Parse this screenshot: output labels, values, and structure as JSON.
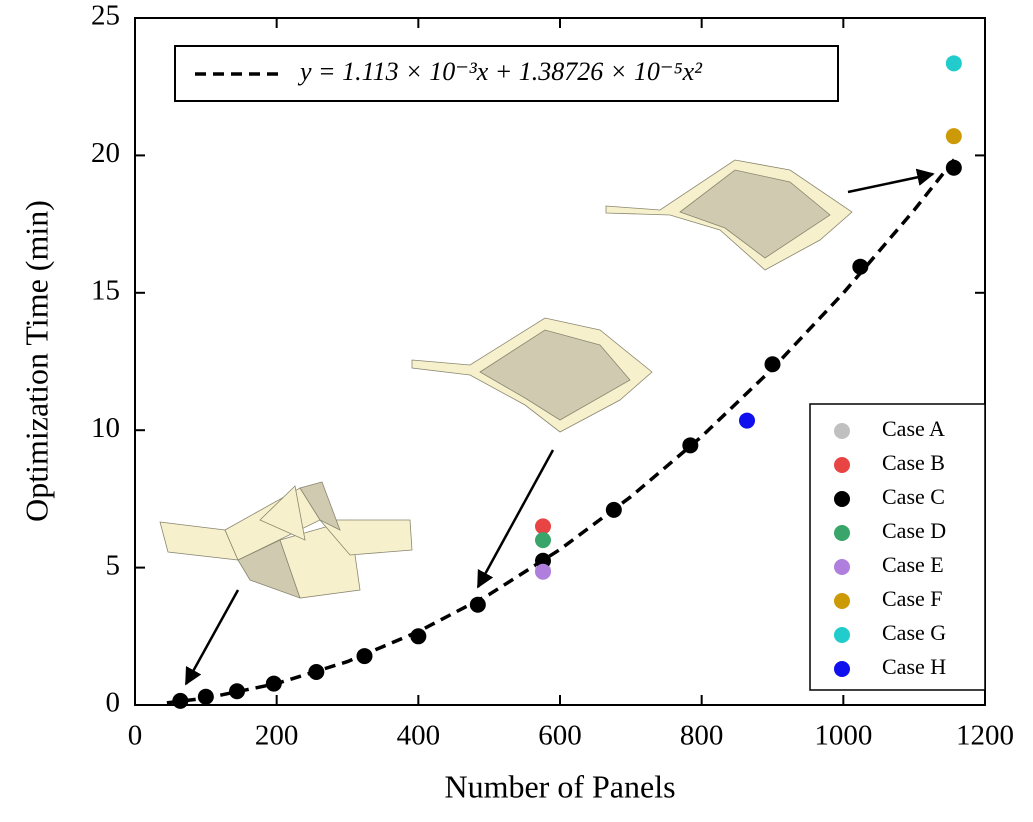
{
  "chart_data": {
    "type": "scatter",
    "x_label": "Number of Panels",
    "y_label": "Optimization Time (min)",
    "xlim": [
      0,
      1200
    ],
    "xticks": [
      0,
      200,
      400,
      600,
      800,
      1000,
      1200
    ],
    "ylim": [
      0,
      25
    ],
    "yticks": [
      0,
      5,
      10,
      15,
      20,
      25
    ],
    "legend": "lower right",
    "series": [
      {
        "name": "y = 1.113 × 10⁻³x + 1.38726 × 10⁻⁵x²",
        "mode": "line",
        "dash": true,
        "color": "#000000",
        "x": [
          45,
          100,
          200,
          300,
          400,
          500,
          600,
          700,
          800,
          900,
          1000,
          1100,
          1160
        ],
        "values": [
          0.08,
          0.25,
          0.78,
          1.58,
          2.67,
          4.02,
          5.66,
          7.58,
          9.77,
          12.24,
          14.99,
          18.01,
          19.96
        ]
      },
      {
        "name": "Case A",
        "mode": "marker",
        "color": "#c0c0c0",
        "x": [
          576
        ],
        "values": [
          4.9
        ]
      },
      {
        "name": "Case B",
        "mode": "marker",
        "color": "#e84444",
        "x": [
          576
        ],
        "values": [
          6.5
        ]
      },
      {
        "name": "Case C",
        "mode": "marker",
        "color": "#000000",
        "x": [
          64,
          100,
          144,
          196,
          256,
          324,
          400,
          484,
          576,
          676,
          784,
          900,
          1024,
          1156
        ],
        "values": [
          0.15,
          0.3,
          0.5,
          0.78,
          1.2,
          1.78,
          2.5,
          3.65,
          5.25,
          7.1,
          9.45,
          12.4,
          15.95,
          19.55
        ]
      },
      {
        "name": "Case D",
        "mode": "marker",
        "color": "#3aa56a",
        "x": [
          576
        ],
        "values": [
          6.0
        ]
      },
      {
        "name": "Case E",
        "mode": "marker",
        "color": "#b07fde",
        "x": [
          576
        ],
        "values": [
          4.85
        ]
      },
      {
        "name": "Case F",
        "mode": "marker",
        "color": "#cc9a06",
        "x": [
          1156
        ],
        "values": [
          20.7
        ]
      },
      {
        "name": "Case G",
        "mode": "marker",
        "color": "#22cccc",
        "x": [
          1156
        ],
        "values": [
          23.35
        ]
      },
      {
        "name": "Case H",
        "mode": "marker",
        "color": "#1010ee",
        "x": [
          864
        ],
        "values": [
          10.35
        ]
      }
    ]
  }
}
